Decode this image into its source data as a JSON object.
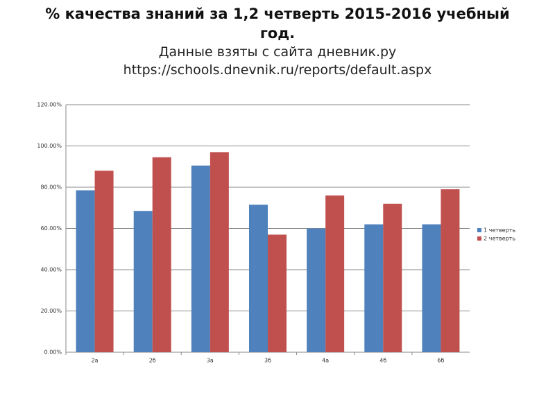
{
  "chart_data": {
    "type": "bar",
    "title": "% качества знаний за 1,2 четверть 2015-2016 учебный год.",
    "subtitle": "Данные взяты с сайта дневник.ру",
    "source_url": "https://schools.dnevnik.ru/reports/default.aspx",
    "categories": [
      "2а",
      "2б",
      "3а",
      "3б",
      "4а",
      "4б",
      "6б"
    ],
    "series": [
      {
        "name": "1 четверть",
        "color": "#4f81bd",
        "values": [
          78.5,
          68.5,
          90.5,
          71.5,
          60,
          62,
          62
        ]
      },
      {
        "name": "2 четверть",
        "color": "#c0504d",
        "values": [
          88,
          94.5,
          97,
          57,
          76,
          72,
          79
        ]
      }
    ],
    "ylim": [
      0,
      120
    ],
    "yticks": [
      {
        "value": 0,
        "label": "0.00%"
      },
      {
        "value": 20,
        "label": "20.00%"
      },
      {
        "value": 40,
        "label": "40.00%"
      },
      {
        "value": 60,
        "label": "60.00%"
      },
      {
        "value": 80,
        "label": "80.00%"
      },
      {
        "value": 100,
        "label": "100.00%"
      },
      {
        "value": 120,
        "label": "120.00%"
      }
    ],
    "grid": true,
    "legend": "right"
  }
}
